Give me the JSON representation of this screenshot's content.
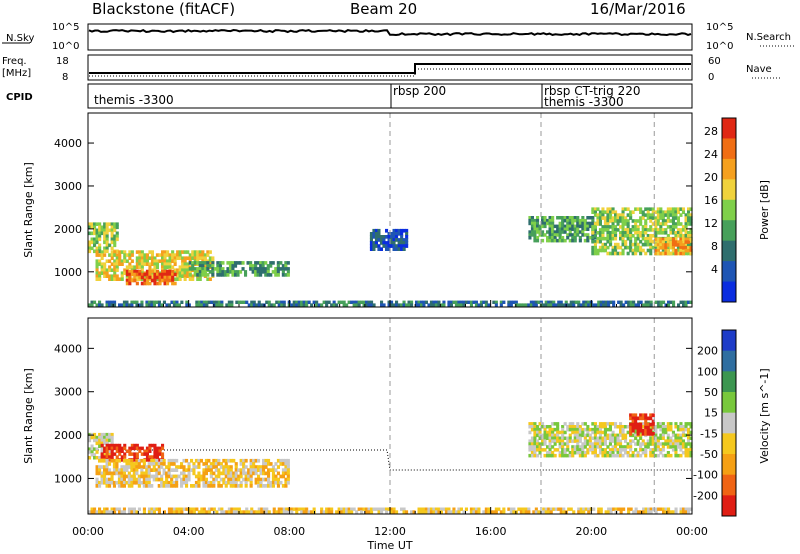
{
  "header": {
    "station": "Blackstone (fitACF)",
    "beam": "Beam 20",
    "date": "16/Mar/2016"
  },
  "top_panels": {
    "nsky_label": "N.Sky",
    "nsky_ticks": [
      "10^5",
      "10^0"
    ],
    "nsearch_label": "N.Search",
    "nsearch_ticks": [
      "10^5",
      "10^0"
    ],
    "freq_label_1": "Freq.",
    "freq_label_2": "[MHz]",
    "freq_ticks": [
      "18",
      "8"
    ],
    "nave_label": "Nave",
    "nave_ticks": [
      "60",
      "0"
    ],
    "cpid_label": "CPID",
    "cpid_segments": [
      {
        "label": "themis -3300",
        "start_hour": 0.0
      },
      {
        "label": "rbsp 200",
        "start_hour": 12.0
      },
      {
        "label": "rbsp CT-trig 220",
        "start_hour": 18.0
      },
      {
        "label": "themis -3300",
        "start_hour": 18.0
      }
    ]
  },
  "chart_data": [
    {
      "type": "heatmap",
      "panel": "power",
      "ylabel": "Slant Range [km]",
      "y_ticks": [
        "1000",
        "2000",
        "3000",
        "4000"
      ],
      "ylim": [
        180,
        4700
      ],
      "xlim": [
        0,
        24
      ],
      "colorbar": {
        "label": "Power [dB]",
        "ticks": [
          "4",
          "8",
          "12",
          "16",
          "20",
          "24",
          "28"
        ],
        "colors": [
          "#0a2de0",
          "#1e55b4",
          "#2f6e6e",
          "#47a05a",
          "#7fcf4a",
          "#f0d23c",
          "#f5a01e",
          "#f06e14",
          "#e02814"
        ]
      },
      "regions": [
        {
          "t0": 0.0,
          "t1": 1.2,
          "r0": 1450,
          "r1": 2150,
          "level": 4
        },
        {
          "t0": 0.3,
          "t1": 5.0,
          "r0": 800,
          "r1": 1500,
          "level": 5
        },
        {
          "t0": 1.5,
          "t1": 3.5,
          "r0": 700,
          "r1": 1050,
          "level": 7
        },
        {
          "t0": 4.0,
          "t1": 8.0,
          "r0": 900,
          "r1": 1250,
          "level": 3
        },
        {
          "t0": 0.0,
          "t1": 24.0,
          "r0": 200,
          "r1": 330,
          "level": 2
        },
        {
          "t0": 11.2,
          "t1": 12.7,
          "r0": 1500,
          "r1": 2000,
          "level": 1
        },
        {
          "t0": 17.5,
          "t1": 20.2,
          "r0": 1700,
          "r1": 2300,
          "level": 3
        },
        {
          "t0": 20.0,
          "t1": 24.0,
          "r0": 1400,
          "r1": 2500,
          "level": 4
        },
        {
          "t0": 22.5,
          "t1": 24.0,
          "r0": 1400,
          "r1": 1800,
          "level": 6
        }
      ]
    },
    {
      "type": "heatmap",
      "panel": "velocity",
      "ylabel": "Slant Range [km]",
      "y_ticks": [
        "1000",
        "2000",
        "3000",
        "4000"
      ],
      "ylim": [
        180,
        4700
      ],
      "xlim": [
        0,
        24
      ],
      "x_ticks": [
        "00:00",
        "04:00",
        "08:00",
        "12:00",
        "16:00",
        "20:00",
        "00:00"
      ],
      "xlabel": "Time UT",
      "colorbar": {
        "label": "Velocity [m s^-1]",
        "ticks": [
          "200",
          "100",
          "50",
          "15",
          "-15",
          "-50",
          "-100",
          "-200"
        ],
        "colors": [
          "#1e3cc8",
          "#2f6ea0",
          "#3c9650",
          "#78c83c",
          "#c8c8c8",
          "#f5c81e",
          "#f5a014",
          "#f06414",
          "#e01e14"
        ]
      },
      "regions": [
        {
          "t0": 0.0,
          "t1": 1.0,
          "r0": 1450,
          "r1": 2050,
          "level": 4
        },
        {
          "t0": 0.5,
          "t1": 3.0,
          "r0": 1400,
          "r1": 1800,
          "level": 8
        },
        {
          "t0": 0.3,
          "t1": 8.0,
          "r0": 800,
          "r1": 1450,
          "level": 5
        },
        {
          "t0": 0.0,
          "t1": 24.0,
          "r0": 200,
          "r1": 330,
          "level": 5
        },
        {
          "t0": 17.5,
          "t1": 24.0,
          "r0": 1500,
          "r1": 2300,
          "level": 4
        },
        {
          "t0": 21.5,
          "t1": 22.5,
          "r0": 2000,
          "r1": 2500,
          "level": 8
        }
      ]
    }
  ]
}
